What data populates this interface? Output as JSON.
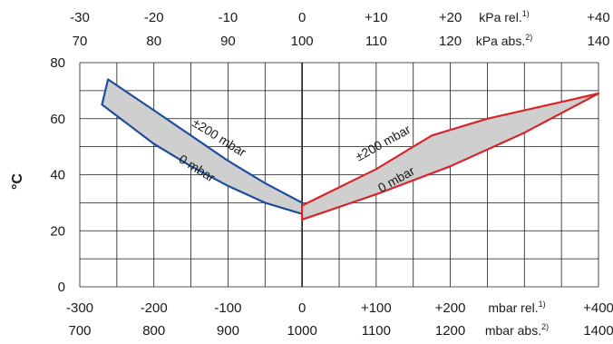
{
  "chart_data": {
    "type": "area",
    "ylabel": "°C",
    "ylim": [
      0,
      80
    ],
    "y_ticks": [
      "0",
      "20",
      "40",
      "60",
      "80"
    ],
    "xlim": [
      -300,
      400
    ],
    "x_axes": [
      {
        "position": "top",
        "row": 1,
        "unit": "kPa rel.",
        "note": "1)",
        "ticks": [
          {
            "v": -300,
            "label": "-30"
          },
          {
            "v": -200,
            "label": "-20"
          },
          {
            "v": -100,
            "label": "-10"
          },
          {
            "v": 0,
            "label": "0"
          },
          {
            "v": 100,
            "label": "+10"
          },
          {
            "v": 200,
            "label": "+20"
          },
          {
            "v": 400,
            "label": "+40"
          }
        ]
      },
      {
        "position": "top",
        "row": 2,
        "unit": "kPa abs.",
        "note": "2)",
        "ticks": [
          {
            "v": -300,
            "label": "70"
          },
          {
            "v": -200,
            "label": "80"
          },
          {
            "v": -100,
            "label": "90"
          },
          {
            "v": 0,
            "label": "100"
          },
          {
            "v": 100,
            "label": "110"
          },
          {
            "v": 200,
            "label": "120"
          },
          {
            "v": 400,
            "label": "140"
          }
        ]
      },
      {
        "position": "bottom",
        "row": 1,
        "unit": "mbar rel.",
        "note": "1)",
        "ticks": [
          {
            "v": -300,
            "label": "-300"
          },
          {
            "v": -200,
            "label": "-200"
          },
          {
            "v": -100,
            "label": "-100"
          },
          {
            "v": 0,
            "label": "0"
          },
          {
            "v": 100,
            "label": "+100"
          },
          {
            "v": 200,
            "label": "+200"
          },
          {
            "v": 400,
            "label": "+400"
          }
        ]
      },
      {
        "position": "bottom",
        "row": 2,
        "unit": "mbar abs.",
        "note": "2)",
        "ticks": [
          {
            "v": -300,
            "label": "700"
          },
          {
            "v": -200,
            "label": "800"
          },
          {
            "v": -100,
            "label": "900"
          },
          {
            "v": 0,
            "label": "1000"
          },
          {
            "v": 100,
            "label": "1100"
          },
          {
            "v": 200,
            "label": "1200"
          },
          {
            "v": 400,
            "label": "1400"
          }
        ]
      }
    ],
    "grid": true,
    "regions": [
      {
        "side": "vacuum",
        "color": "#1f4e9c",
        "fill": "#cfcfcf",
        "upper_label": "±200 mbar",
        "lower_label": "0 mbar",
        "upper": [
          [
            -262,
            74
          ],
          [
            -200,
            63
          ],
          [
            -150,
            54
          ],
          [
            -100,
            45
          ],
          [
            -50,
            37
          ],
          [
            0,
            30
          ]
        ],
        "lower": [
          [
            -270,
            65
          ],
          [
            -200,
            51
          ],
          [
            -150,
            43
          ],
          [
            -100,
            36
          ],
          [
            -50,
            30
          ],
          [
            0,
            26
          ]
        ]
      },
      {
        "side": "pressure",
        "color": "#d7252c",
        "fill": "#cfcfcf",
        "upper_label": "±200 mbar",
        "lower_label": "0 mbar",
        "upper": [
          [
            0,
            29
          ],
          [
            100,
            42
          ],
          [
            175,
            54
          ],
          [
            250,
            60
          ],
          [
            400,
            69
          ]
        ],
        "lower": [
          [
            0,
            24
          ],
          [
            100,
            33
          ],
          [
            200,
            43
          ],
          [
            300,
            55
          ],
          [
            400,
            69
          ]
        ]
      }
    ]
  }
}
